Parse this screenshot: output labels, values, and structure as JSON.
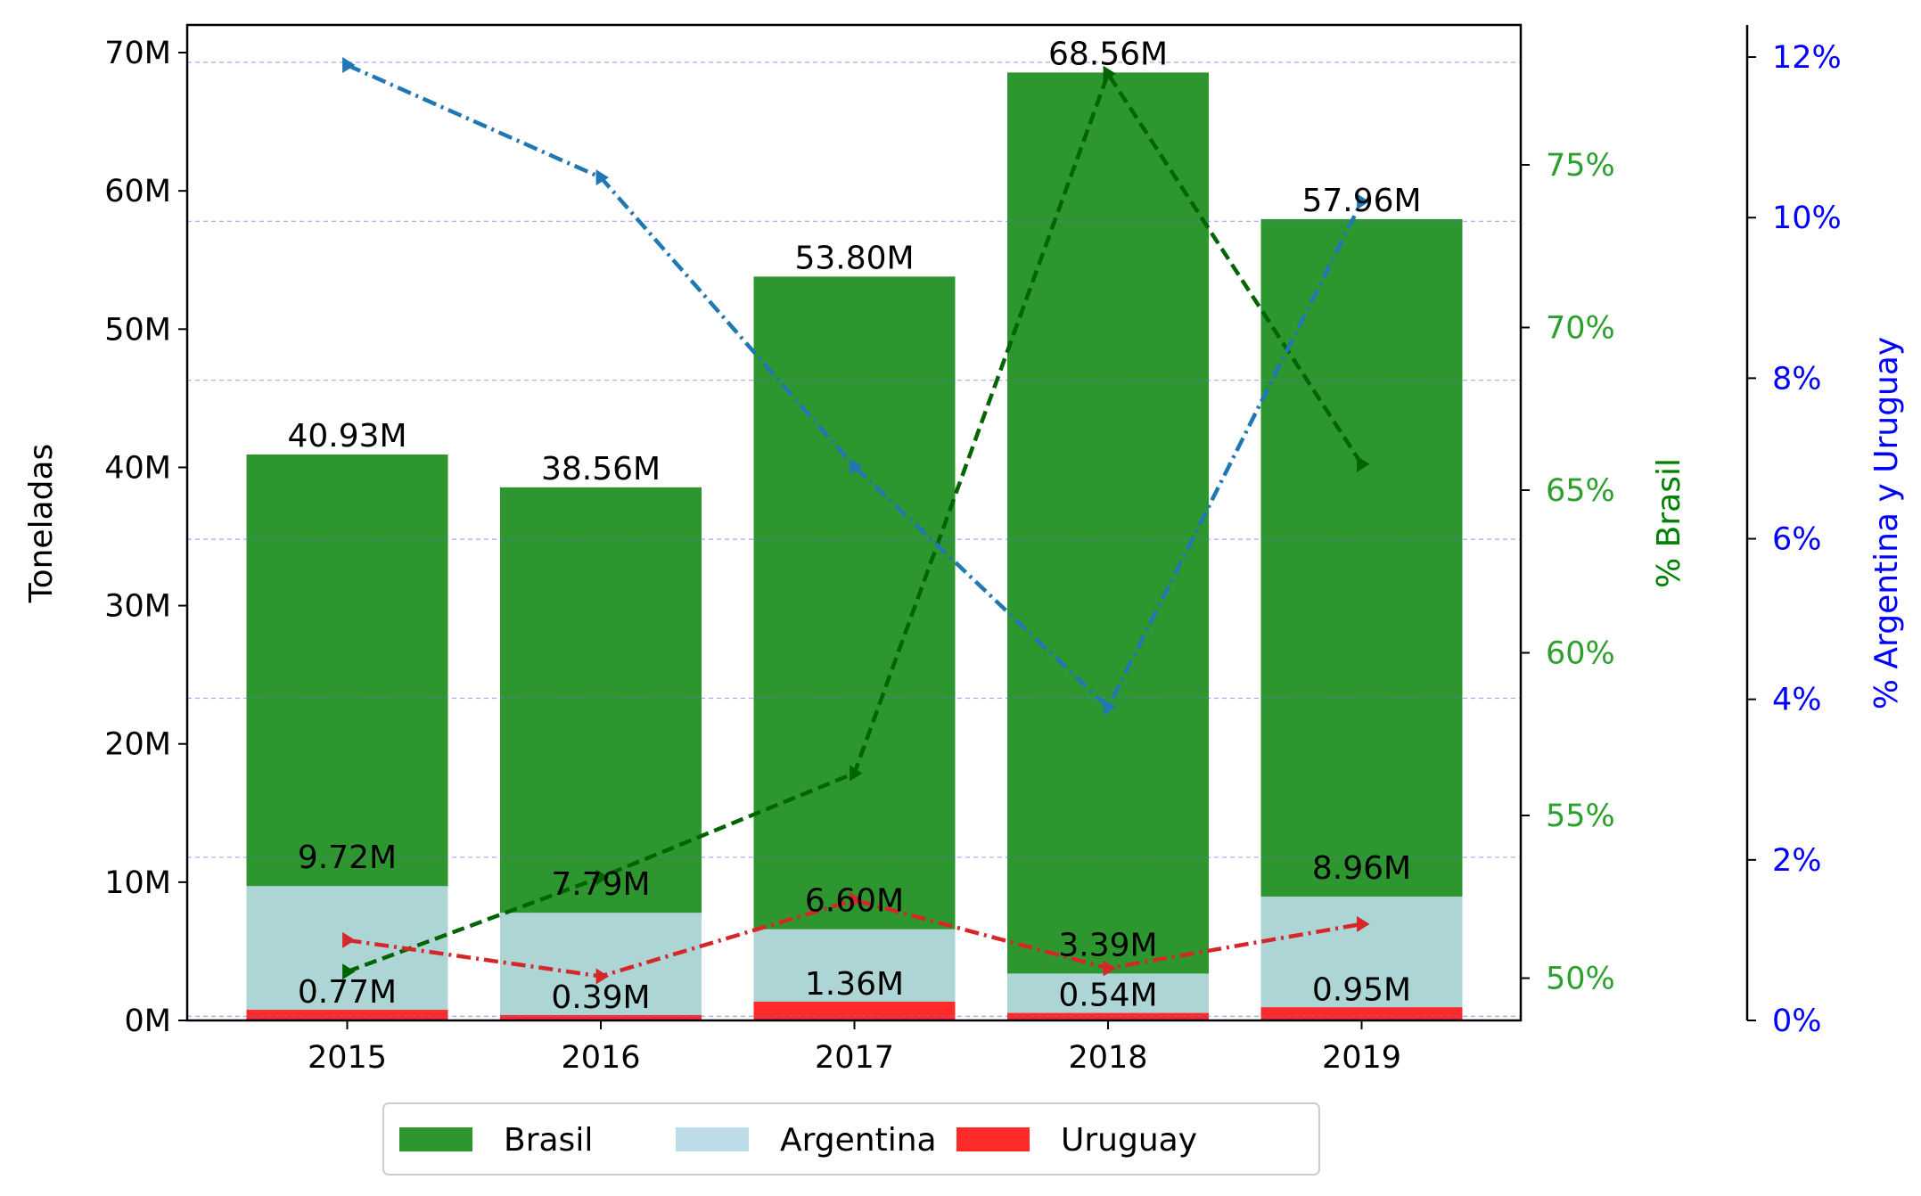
{
  "chart_data": {
    "type": "bar",
    "stacked": true,
    "categories": [
      "2015",
      "2016",
      "2017",
      "2018",
      "2019"
    ],
    "series": [
      {
        "name": "Brasil",
        "values": [
          40.93,
          38.56,
          53.8,
          68.56,
          57.96
        ],
        "unit": "M",
        "color": "#2e962e"
      },
      {
        "name": "Argentina",
        "values": [
          9.72,
          7.79,
          6.6,
          3.39,
          8.96
        ],
        "unit": "M",
        "color": "#bcdce8"
      },
      {
        "name": "Uruguay",
        "values": [
          0.77,
          0.39,
          1.36,
          0.54,
          0.95
        ],
        "unit": "M",
        "color": "#ff2a2a"
      }
    ],
    "bar_labels": {
      "Brasil": [
        "40.93M",
        "38.56M",
        "53.80M",
        "68.56M",
        "57.96M"
      ],
      "Argentina": [
        "9.72M",
        "7.79M",
        "6.60M",
        "3.39M",
        "8.96M"
      ],
      "Uruguay": [
        "0.77M",
        "0.39M",
        "1.36M",
        "0.54M",
        "0.95M"
      ]
    },
    "lines": [
      {
        "axis": "right_brasil",
        "color": "#006400",
        "style": "dashed",
        "marker": "triangle-right",
        "values": [
          50.2,
          53.1,
          56.3,
          77.8,
          65.8
        ]
      },
      {
        "axis": "right_arg_uru",
        "color": "#1f77b4",
        "style": "dashdot",
        "marker": "triangle-right",
        "values": [
          11.9,
          10.5,
          6.9,
          3.9,
          10.2
        ]
      },
      {
        "axis": "right_arg_uru",
        "color": "#d62728",
        "style": "dashdot",
        "marker": "triangle-right",
        "values": [
          1.0,
          0.55,
          1.5,
          0.65,
          1.2
        ]
      }
    ],
    "axes": {
      "left": {
        "label": "Toneladas",
        "ylim": [
          0,
          72
        ],
        "ticks": [
          0,
          10,
          20,
          30,
          40,
          50,
          60,
          70
        ],
        "tick_labels": [
          "0M",
          "10M",
          "20M",
          "30M",
          "40M",
          "50M",
          "60M",
          "70M"
        ]
      },
      "right_brasil": {
        "label": "% Brasil",
        "ylim": [
          48.7,
          79.3
        ],
        "ticks": [
          50,
          55,
          60,
          65,
          70,
          75
        ],
        "tick_labels": [
          "50%",
          "55%",
          "60%",
          "65%",
          "70%",
          "75%"
        ],
        "color": "#2ca02c"
      },
      "right_arg_uru": {
        "label": "% Argentina y Uruguay",
        "ylim": [
          0,
          12.4
        ],
        "ticks": [
          0,
          2,
          4,
          6,
          8,
          10,
          12
        ],
        "tick_labels": [
          "0%",
          "2%",
          "4%",
          "6%",
          "8%",
          "10%",
          "12%"
        ],
        "color": "#0000ff"
      }
    },
    "gridlines": [
      0.3,
      11.8,
      23.3,
      34.8,
      46.3,
      57.8,
      69.3
    ],
    "grid": true,
    "legend": {
      "placement": "bottom-center",
      "entries": [
        "Brasil",
        "Argentina",
        "Uruguay"
      ]
    }
  }
}
